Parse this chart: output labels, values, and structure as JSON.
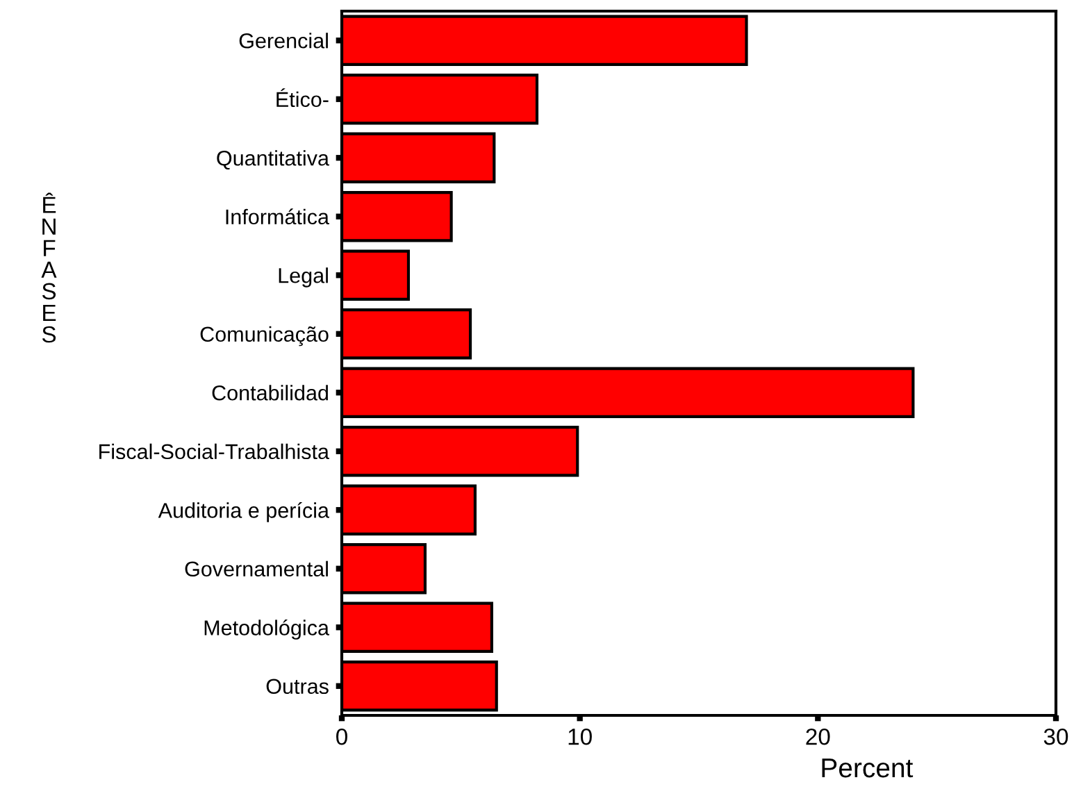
{
  "chart_data": {
    "type": "bar",
    "orientation": "horizontal",
    "xlabel": "Percent",
    "ylabel": "ÊNFASES",
    "categories": [
      "Gerencial",
      "Ético-",
      "Quantitativa",
      "Informática",
      "Legal",
      "Comunicação",
      "Contabilidad",
      "Fiscal-Social-Trabalhista",
      "Auditoria e perícia",
      "Governamental",
      "Metodológica",
      "Outras"
    ],
    "values": [
      17.0,
      8.2,
      6.4,
      4.6,
      2.8,
      5.4,
      24.0,
      9.9,
      5.6,
      3.5,
      6.3,
      6.5
    ],
    "color": "#ff0000",
    "xlim": [
      0,
      30
    ],
    "xticks": [
      0,
      10,
      20,
      30
    ],
    "grid": false,
    "legend": false
  }
}
